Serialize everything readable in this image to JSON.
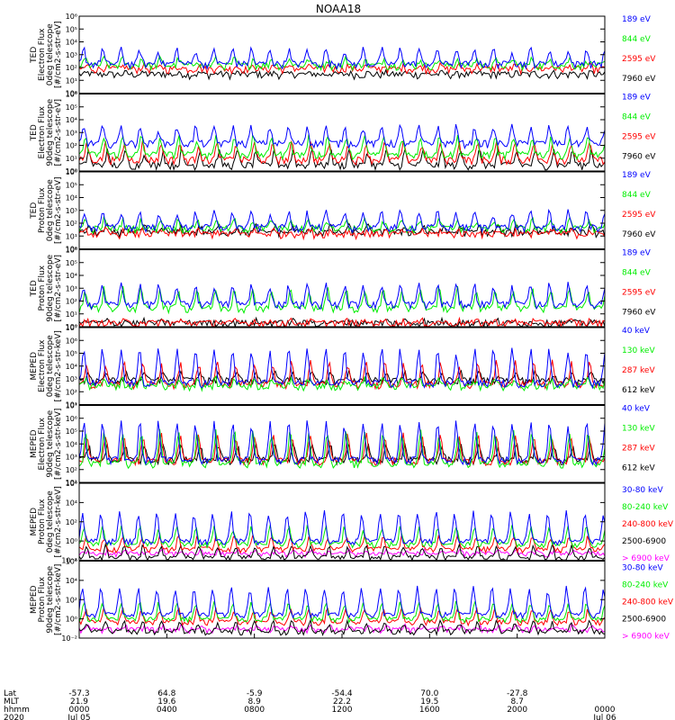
{
  "title": "NOAA18",
  "colors": {
    "blue": "#0000ff",
    "red": "#ff0000",
    "green": "#00ee00",
    "black": "#000000",
    "magenta": "#ff00ff"
  },
  "chart_data": [
    {
      "type": "line",
      "ylabel": [
        "TED",
        "Electron Flux",
        "0deg telescope",
        "[#/cm2-s-str-eV]"
      ],
      "ylim": [
        1,
        1000000
      ],
      "yticks": [
        "10⁰",
        "10¹",
        "10²",
        "10³",
        "10⁴",
        "10⁵",
        "10⁶"
      ],
      "series": [
        {
          "name": "7960 eV",
          "color": "#000000",
          "level": 40,
          "base": 30
        },
        {
          "name": "2595 eV",
          "color": "#ff0000",
          "level": 150,
          "base": 80
        },
        {
          "name": "844 eV",
          "color": "#00ee00",
          "level": 500,
          "base": 150
        },
        {
          "name": "189 eV",
          "color": "#0000ff",
          "level": 3000,
          "base": 200
        }
      ]
    },
    {
      "type": "line",
      "ylabel": [
        "TED",
        "Electron Flux",
        "90deg telescope",
        "[#/cm2-s-str-eV]"
      ],
      "ylim": [
        1,
        1000000
      ],
      "yticks": [
        "10⁰",
        "10¹",
        "10²",
        "10³",
        "10⁴",
        "10⁵",
        "10⁶"
      ],
      "series": [
        {
          "name": "7960 eV",
          "color": "#000000",
          "level": 40,
          "base": 3
        },
        {
          "name": "2595 eV",
          "color": "#ff0000",
          "level": 150,
          "base": 8
        },
        {
          "name": "844 eV",
          "color": "#00ee00",
          "level": 500,
          "base": 20
        },
        {
          "name": "189 eV",
          "color": "#0000ff",
          "level": 3000,
          "base": 150
        }
      ]
    },
    {
      "type": "line",
      "ylabel": [
        "TED",
        "Proton Flux",
        "0deg telescope",
        "[#/cm2-s-str-eV]"
      ],
      "ylim": [
        1,
        1000000
      ],
      "yticks": [
        "10⁰",
        "10¹",
        "10²",
        "10³",
        "10⁴",
        "10⁵",
        "10⁶"
      ],
      "series": [
        {
          "name": "7960 eV",
          "color": "#000000",
          "level": 60,
          "base": 20
        },
        {
          "name": "2595 eV",
          "color": "#ff0000",
          "level": 30,
          "base": 15
        },
        {
          "name": "844 eV",
          "color": "#00ee00",
          "level": 200,
          "base": 40
        },
        {
          "name": "189 eV",
          "color": "#0000ff",
          "level": 800,
          "base": 50
        }
      ]
    },
    {
      "type": "line",
      "ylabel": [
        "TED",
        "Proton Flux",
        "90deg telescope",
        "[#/cm2-s-str-eV]"
      ],
      "ylim": [
        1,
        1000000
      ],
      "yticks": [
        "10⁰",
        "10¹",
        "10²",
        "10³",
        "10⁴",
        "10⁵",
        "10⁶"
      ],
      "series": [
        {
          "name": "7960 eV",
          "color": "#000000",
          "level": 3,
          "base": 2
        },
        {
          "name": "2595 eV",
          "color": "#ff0000",
          "level": 3,
          "base": 2
        },
        {
          "name": "844 eV",
          "color": "#00ee00",
          "level": 1000,
          "base": 30
        },
        {
          "name": "189 eV",
          "color": "#0000ff",
          "level": 2000,
          "base": 60
        }
      ]
    },
    {
      "type": "line",
      "ylabel": [
        "MEPED",
        "Electron Flux",
        "0deg telescope",
        "[#/cm2-s-str-keV]"
      ],
      "ylim": [
        10,
        10000000
      ],
      "yticks": [
        "10¹",
        "10²",
        "10³",
        "10⁴",
        "10⁵",
        "10⁶",
        "10⁷"
      ],
      "series": [
        {
          "name": "612 keV",
          "color": "#000000",
          "level": 3000,
          "base": 800
        },
        {
          "name": "287 keV",
          "color": "#ff0000",
          "level": 20000,
          "base": 400
        },
        {
          "name": "130 keV",
          "color": "#00ee00",
          "level": 1000,
          "base": 300
        },
        {
          "name": "40 keV",
          "color": "#0000ff",
          "level": 200000,
          "base": 500
        }
      ]
    },
    {
      "type": "line",
      "ylabel": [
        "MEPED",
        "Electron Flux",
        "90deg telescope",
        "[#/cm2-s-str-keV]"
      ],
      "ylim": [
        10,
        10000000
      ],
      "yticks": [
        "10¹",
        "10²",
        "10³",
        "10⁴",
        "10⁵",
        "10⁶",
        "10⁷"
      ],
      "series": [
        {
          "name": "612 keV",
          "color": "#000000",
          "level": 8000,
          "base": 600
        },
        {
          "name": "287 keV",
          "color": "#ff0000",
          "level": 50000,
          "base": 500
        },
        {
          "name": "130 keV",
          "color": "#00ee00",
          "level": 100000,
          "base": 300
        },
        {
          "name": "40 keV",
          "color": "#0000ff",
          "level": 500000,
          "base": 600
        }
      ]
    },
    {
      "type": "line",
      "ylabel": [
        "MEPED",
        "Proton Flux",
        "0deg telescope",
        "[#/cm2-s-str-keV]"
      ],
      "ylim": [
        0.01,
        1000000
      ],
      "yticks": [
        "10⁻²",
        "10⁰",
        "10²",
        "10⁴",
        "10⁶"
      ],
      "series": [
        {
          "name": "> 6900 keV",
          "color": "#ff00ff",
          "level": 0.1,
          "base": 0.05
        },
        {
          "name": "2500-6900",
          "color": "#000000",
          "level": 0.3,
          "base": 0.02
        },
        {
          "name": "240-800 keV",
          "color": "#ff0000",
          "level": 3,
          "base": 0.15
        },
        {
          "name": "80-240 keV",
          "color": "#00ee00",
          "level": 30,
          "base": 0.5
        },
        {
          "name": "30-80 keV",
          "color": "#0000ff",
          "level": 1000,
          "base": 1
        }
      ]
    },
    {
      "type": "line",
      "ylabel": [
        "MEPED",
        "Proton Flux",
        "90deg telescope",
        "[#/cm2-s-str-keV]"
      ],
      "ylim": [
        0.01,
        1000000
      ],
      "yticks": [
        "10⁻²",
        "10⁰",
        "10²",
        "10⁴",
        "10⁶"
      ],
      "series": [
        {
          "name": "> 6900 keV",
          "color": "#ff00ff",
          "level": 0.2,
          "base": 0.08
        },
        {
          "name": "2500-6900",
          "color": "#000000",
          "level": 0.5,
          "base": 0.05
        },
        {
          "name": "240-800 keV",
          "color": "#ff0000",
          "level": 10,
          "base": 0.5
        },
        {
          "name": "80-240 keV",
          "color": "#00ee00",
          "level": 50,
          "base": 1
        },
        {
          "name": "30-80 keV",
          "color": "#0000ff",
          "level": 2000,
          "base": 3
        }
      ]
    }
  ],
  "xaxis": {
    "row_labels": [
      "Lat",
      "MLT",
      "hhmm",
      "2020"
    ],
    "ticks": [
      {
        "lat": "-57.3",
        "mlt": "21.9",
        "hhmm": "0000",
        "date": "Jul 05"
      },
      {
        "lat": "64.8",
        "mlt": "19.6",
        "hhmm": "0400",
        "date": ""
      },
      {
        "lat": "-5.9",
        "mlt": "8.9",
        "hhmm": "0800",
        "date": ""
      },
      {
        "lat": "-54.4",
        "mlt": "22.2",
        "hhmm": "1200",
        "date": ""
      },
      {
        "lat": "70.0",
        "mlt": "19.5",
        "hhmm": "1600",
        "date": ""
      },
      {
        "lat": "-27.8",
        "mlt": "8.7",
        "hhmm": "2000",
        "date": ""
      },
      {
        "lat": "",
        "mlt": "",
        "hhmm": "0000",
        "date": "Jul 06"
      }
    ],
    "range_hours": [
      0,
      24
    ],
    "orbit_period_hours": 1.7
  }
}
